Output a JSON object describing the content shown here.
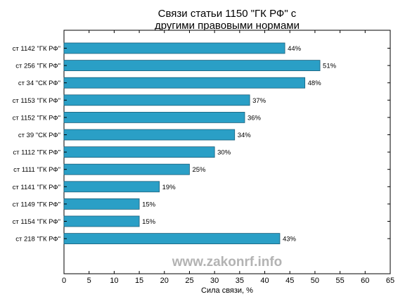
{
  "chart_data": {
    "type": "bar",
    "orientation": "horizontal",
    "title_lines": [
      "Связи статьи 1150 \"ГК РФ\" с",
      "другими правовыми нормами"
    ],
    "xlabel": "Сила связи, %",
    "ylabel": "",
    "xlim": [
      0,
      65
    ],
    "xticks": [
      0,
      5,
      10,
      15,
      20,
      25,
      30,
      35,
      40,
      45,
      50,
      55,
      60,
      65
    ],
    "categories": [
      "ст 1142 \"ГК РФ\"",
      "ст 256 \"ГК РФ\"",
      "ст 34 \"СК РФ\"",
      "ст 1153 \"ГК РФ\"",
      "ст 1152 \"ГК РФ\"",
      "ст 39 \"СК РФ\"",
      "ст 1112 \"ГК РФ\"",
      "ст 1111 \"ГК РФ\"",
      "ст 1141 \"ГК РФ\"",
      "ст 1149 \"ГК РФ\"",
      "ст 1154 \"ГК РФ\"",
      "ст 218 \"ГК РФ\""
    ],
    "values": [
      44,
      51,
      48,
      37,
      36,
      34,
      30,
      25,
      19,
      15,
      15,
      43
    ],
    "value_labels": [
      "44%",
      "51%",
      "48%",
      "37%",
      "36%",
      "34%",
      "30%",
      "25%",
      "19%",
      "15%",
      "15%",
      "43%"
    ],
    "bar_color": "#2a9fc6",
    "bar_edge_color": "#1b5f7a",
    "grid": false,
    "watermark": "www.zakonrf.info"
  }
}
